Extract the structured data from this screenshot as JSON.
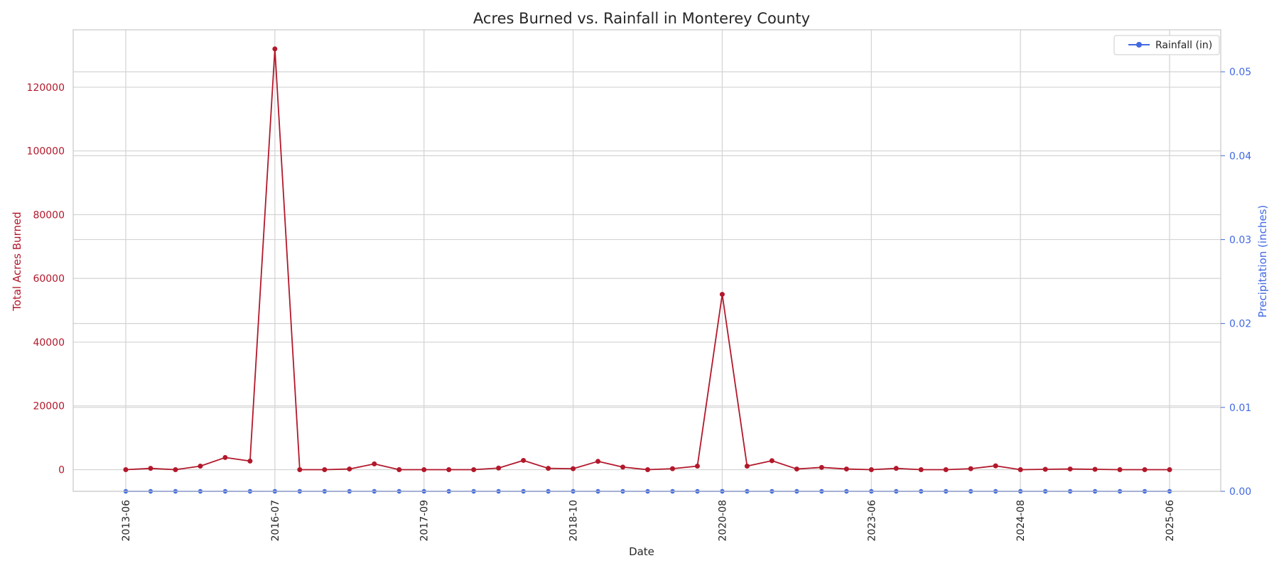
{
  "chart_data": {
    "type": "line",
    "title": "Acres Burned vs. Rainfall in Monterey County",
    "xlabel": "Date",
    "ylabel_left": "Total Acres Burned",
    "ylabel_right": "Precipitation (inches)",
    "x_tick_labels": [
      "2013-06",
      "2016-07",
      "2017-09",
      "2018-10",
      "2020-08",
      "2023-06",
      "2024-08",
      "2025-06"
    ],
    "x_tick_positions": [
      0,
      6,
      12,
      18,
      24,
      30,
      36,
      42
    ],
    "ylim_left": [
      -6800,
      138000
    ],
    "yticks_left": [
      0,
      20000,
      40000,
      60000,
      80000,
      100000,
      120000
    ],
    "ylim_right": [
      0,
      0.055
    ],
    "yticks_right": [
      "0.00",
      "0.01",
      "0.02",
      "0.03",
      "0.04",
      "0.05"
    ],
    "yticks_right_values": [
      0,
      0.01,
      0.02,
      0.03,
      0.04,
      0.05
    ],
    "grid": true,
    "legend_position": "top-right",
    "colors": {
      "acres": "#b2182b",
      "rain": "#4169e1",
      "grid": "#d3d3d3",
      "frame": "#c8c8c8"
    },
    "series": [
      {
        "axis": "left",
        "values": [
          0,
          400,
          0,
          1100,
          3800,
          2700,
          132000,
          0,
          0,
          200,
          1800,
          0,
          0,
          0,
          0,
          500,
          2900,
          400,
          300,
          2600,
          800,
          0,
          300,
          1100,
          55000,
          1100,
          2800,
          200,
          700,
          200,
          0,
          400,
          0,
          0,
          300,
          1200,
          0,
          100,
          200,
          100,
          0,
          0,
          0
        ]
      },
      {
        "name": "Rainfall (in)",
        "axis": "right",
        "values": [
          0,
          0,
          0,
          0,
          0,
          0,
          0,
          0,
          0,
          0,
          0,
          0,
          0,
          0,
          0,
          0,
          0,
          0,
          0,
          0,
          0,
          0,
          0,
          0,
          0,
          0,
          0,
          0,
          0,
          0,
          0,
          0,
          0,
          0,
          0,
          0,
          0,
          0,
          0,
          0,
          0,
          0,
          0
        ]
      }
    ]
  }
}
